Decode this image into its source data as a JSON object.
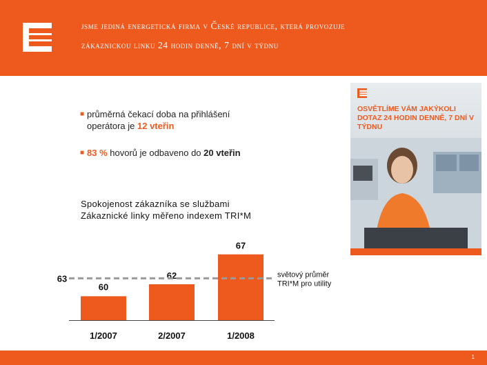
{
  "header": {
    "tagline_line1": "jsme jediná energetická firma v České republice, která provozuje",
    "tagline_line2": "zákaznickou linku 24 hodin denně, 7 dní v týdnu"
  },
  "bullets": [
    {
      "prefix": "průměrná čekací doba na přihlášení",
      "line2": "operátora je ",
      "highlight": "12 vteřin"
    },
    {
      "highlight": "83 %",
      "mid": " hovorů je odbaveno do ",
      "bold": "20 vteřin"
    }
  ],
  "chart_title_line1": "Spokojenost zákazníka se službami",
  "chart_title_line2": "Zákaznické linky měřeno indexem TRI*M",
  "poster": {
    "title": "OSVĚTLÍME VÁM JAKÝKOLI DOTAZ 24 HODIN DENNĚ, 7 DNÍ V TÝDNU"
  },
  "footer": {
    "page_number": "1"
  },
  "colors": {
    "accent": "#ee5a1e",
    "reference_line": "#9a9a9a"
  },
  "chart_data": {
    "type": "bar",
    "title": "Spokojenost zákazníka se službami Zákaznické linky měřeno indexem TRI*M",
    "categories": [
      "1/2007",
      "2/2007",
      "1/2008"
    ],
    "values": [
      60,
      62,
      67
    ],
    "reference": {
      "value": 63,
      "label_line1": "světový průměr",
      "label_line2": "TRI*M pro utility"
    },
    "ylim": [
      56,
      68
    ],
    "grid": false
  }
}
